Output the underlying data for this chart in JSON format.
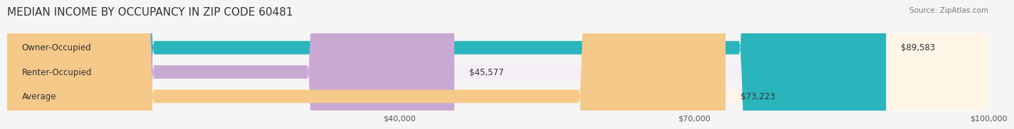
{
  "title": "MEDIAN INCOME BY OCCUPANCY IN ZIP CODE 60481",
  "source": "Source: ZipAtlas.com",
  "categories": [
    "Owner-Occupied",
    "Renter-Occupied",
    "Average"
  ],
  "values": [
    89583,
    45577,
    73223
  ],
  "labels": [
    "$89,583",
    "$45,577",
    "$73,223"
  ],
  "bar_colors": [
    "#2ab5bc",
    "#c9a8d4",
    "#f5c98a"
  ],
  "bar_bg_colors": [
    "#e8f8f8",
    "#f3eef7",
    "#fef5e7"
  ],
  "xlim": [
    0,
    100000
  ],
  "xticks": [
    40000,
    70000,
    100000
  ],
  "xtick_labels": [
    "$40,000",
    "$70,000",
    "$100,000"
  ],
  "background_color": "#f5f5f5",
  "bar_height": 0.55,
  "title_fontsize": 11,
  "label_fontsize": 8.5,
  "tick_fontsize": 8,
  "source_fontsize": 7.5
}
